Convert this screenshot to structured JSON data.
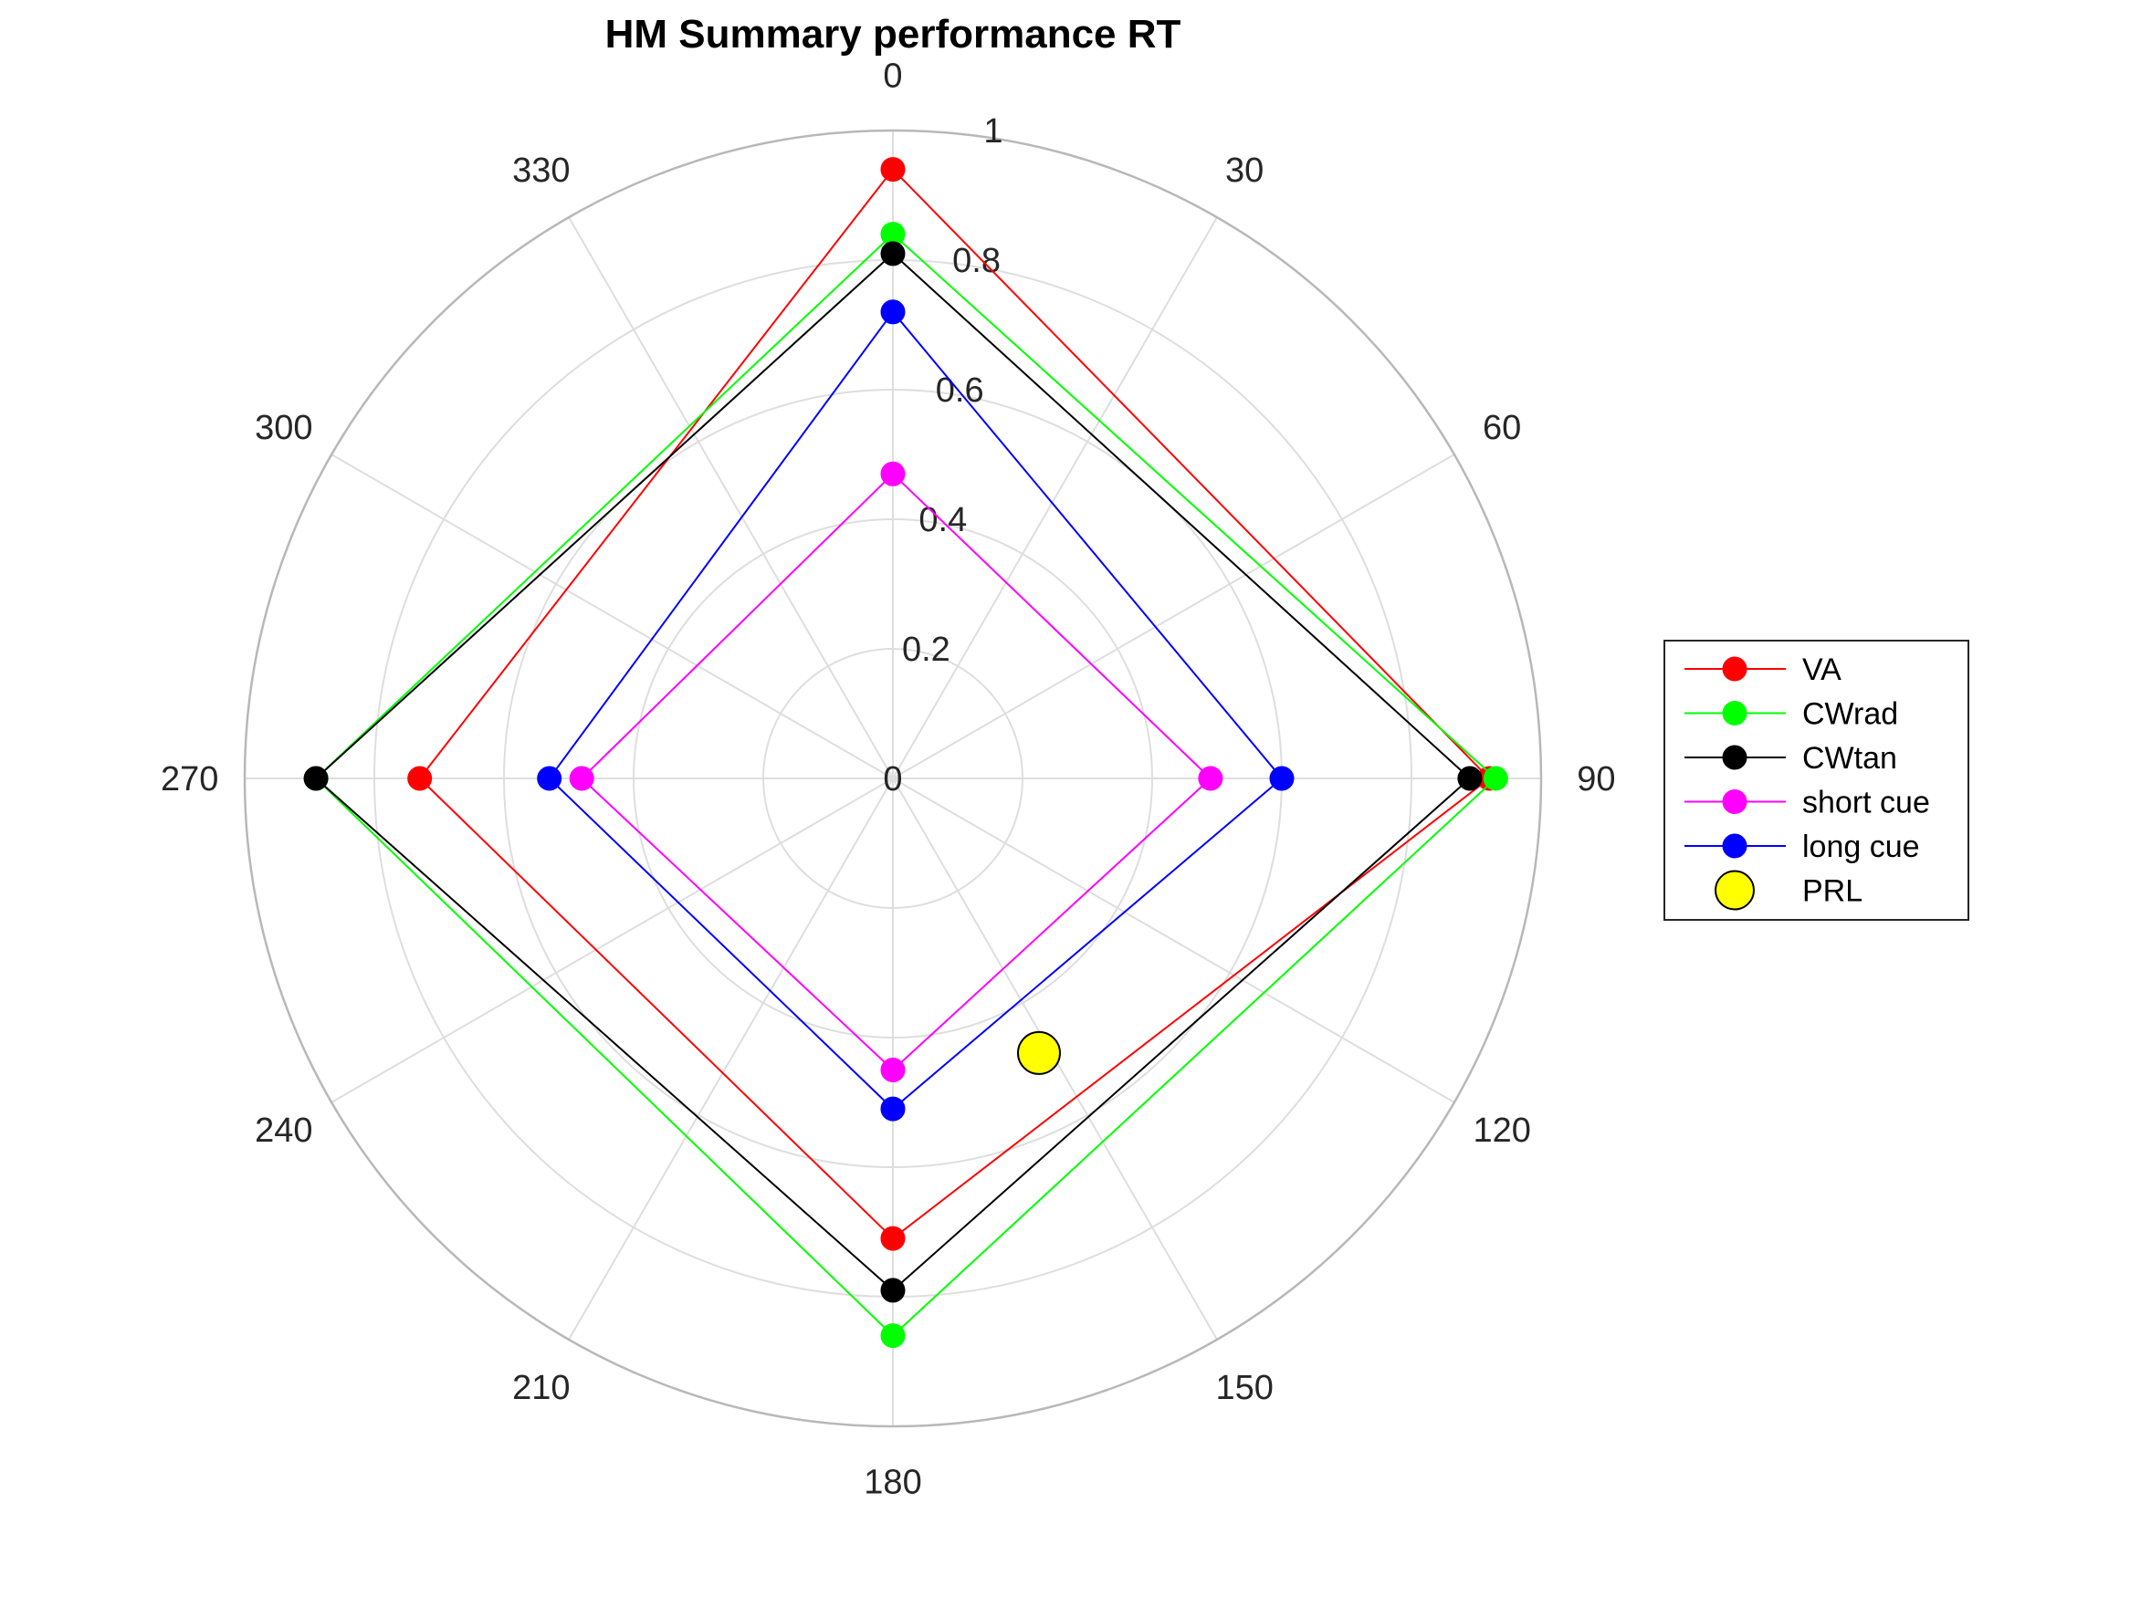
{
  "chart_data": {
    "type": "polar-line",
    "title": "HM Summary performance RT",
    "theta_unit": "degrees",
    "theta_direction": "clockwise",
    "theta_zero": "top",
    "theta_ticks": [
      0,
      30,
      60,
      90,
      120,
      150,
      180,
      210,
      240,
      270,
      300,
      330
    ],
    "theta_tick_labels": [
      "0",
      "30",
      "60",
      "90",
      "120",
      "150",
      "180",
      "210",
      "240",
      "270",
      "300",
      "330"
    ],
    "r_ticks": [
      0,
      0.2,
      0.4,
      0.6,
      0.8,
      1
    ],
    "r_tick_labels": [
      "0",
      "0.2",
      "0.4",
      "0.6",
      "0.8",
      "1"
    ],
    "rlim": [
      0,
      1
    ],
    "grid": true,
    "legend_position": "right",
    "series": [
      {
        "name": "VA",
        "color": "#ff0000",
        "theta": [
          0,
          90,
          180,
          270,
          0
        ],
        "r": [
          0.94,
          0.92,
          0.71,
          0.73,
          0.94
        ]
      },
      {
        "name": "CWrad",
        "color": "#00ff00",
        "theta": [
          0,
          90,
          180,
          270,
          0
        ],
        "r": [
          0.84,
          0.93,
          0.86,
          0.89,
          0.84
        ]
      },
      {
        "name": "CWtan",
        "color": "#000000",
        "theta": [
          0,
          90,
          180,
          270,
          0
        ],
        "r": [
          0.81,
          0.89,
          0.79,
          0.89,
          0.81
        ]
      },
      {
        "name": "short cue",
        "color": "#ff00ff",
        "theta": [
          0,
          90,
          180,
          270,
          0
        ],
        "r": [
          0.47,
          0.49,
          0.45,
          0.48,
          0.47
        ]
      },
      {
        "name": "long cue",
        "color": "#0000ff",
        "theta": [
          0,
          90,
          180,
          270,
          0
        ],
        "r": [
          0.72,
          0.6,
          0.51,
          0.53,
          0.72
        ]
      }
    ],
    "markers": [
      {
        "name": "PRL",
        "color": "#ffff00",
        "edge_color": "#000000",
        "theta": 152,
        "r": 0.48
      }
    ]
  }
}
